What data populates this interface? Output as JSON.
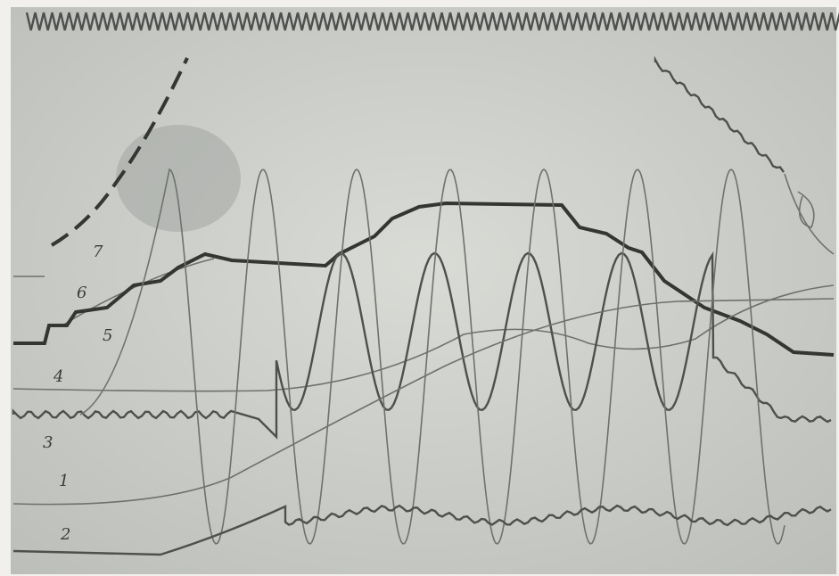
{
  "trace_labels": [
    "1",
    "2",
    "3",
    "4",
    "5",
    "6",
    "7"
  ]
}
